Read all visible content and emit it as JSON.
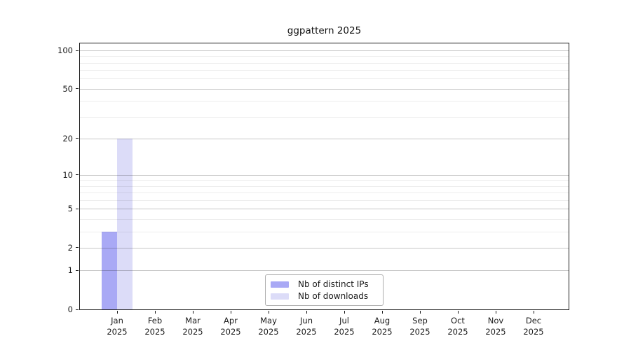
{
  "chart_data": {
    "type": "bar",
    "title": "ggpattern 2025",
    "categories": [
      "Jan 2025",
      "Feb 2025",
      "Mar 2025",
      "Apr 2025",
      "May 2025",
      "Jun 2025",
      "Jul 2025",
      "Aug 2025",
      "Sep 2025",
      "Oct 2025",
      "Nov 2025",
      "Dec 2025"
    ],
    "series": [
      {
        "name": "Nb of distinct IPs",
        "color": "#a9a9f5",
        "values": [
          3,
          0,
          0,
          0,
          0,
          0,
          0,
          0,
          0,
          0,
          0,
          0
        ]
      },
      {
        "name": "Nb of downloads",
        "color": "#dcdcf8",
        "values": [
          20,
          0,
          0,
          0,
          0,
          0,
          0,
          0,
          0,
          0,
          0,
          0
        ]
      }
    ],
    "y_axis": {
      "scale": "log10(1+x)",
      "tick_labels": [
        0,
        1,
        2,
        5,
        10,
        20,
        50,
        100
      ],
      "minor_gridlines": [
        3,
        4,
        6,
        7,
        8,
        9,
        30,
        40,
        60,
        70,
        80,
        90
      ],
      "range": [
        0,
        113
      ]
    },
    "x_axis": {
      "label": ""
    },
    "grid": true,
    "legend_position": "lower center"
  }
}
